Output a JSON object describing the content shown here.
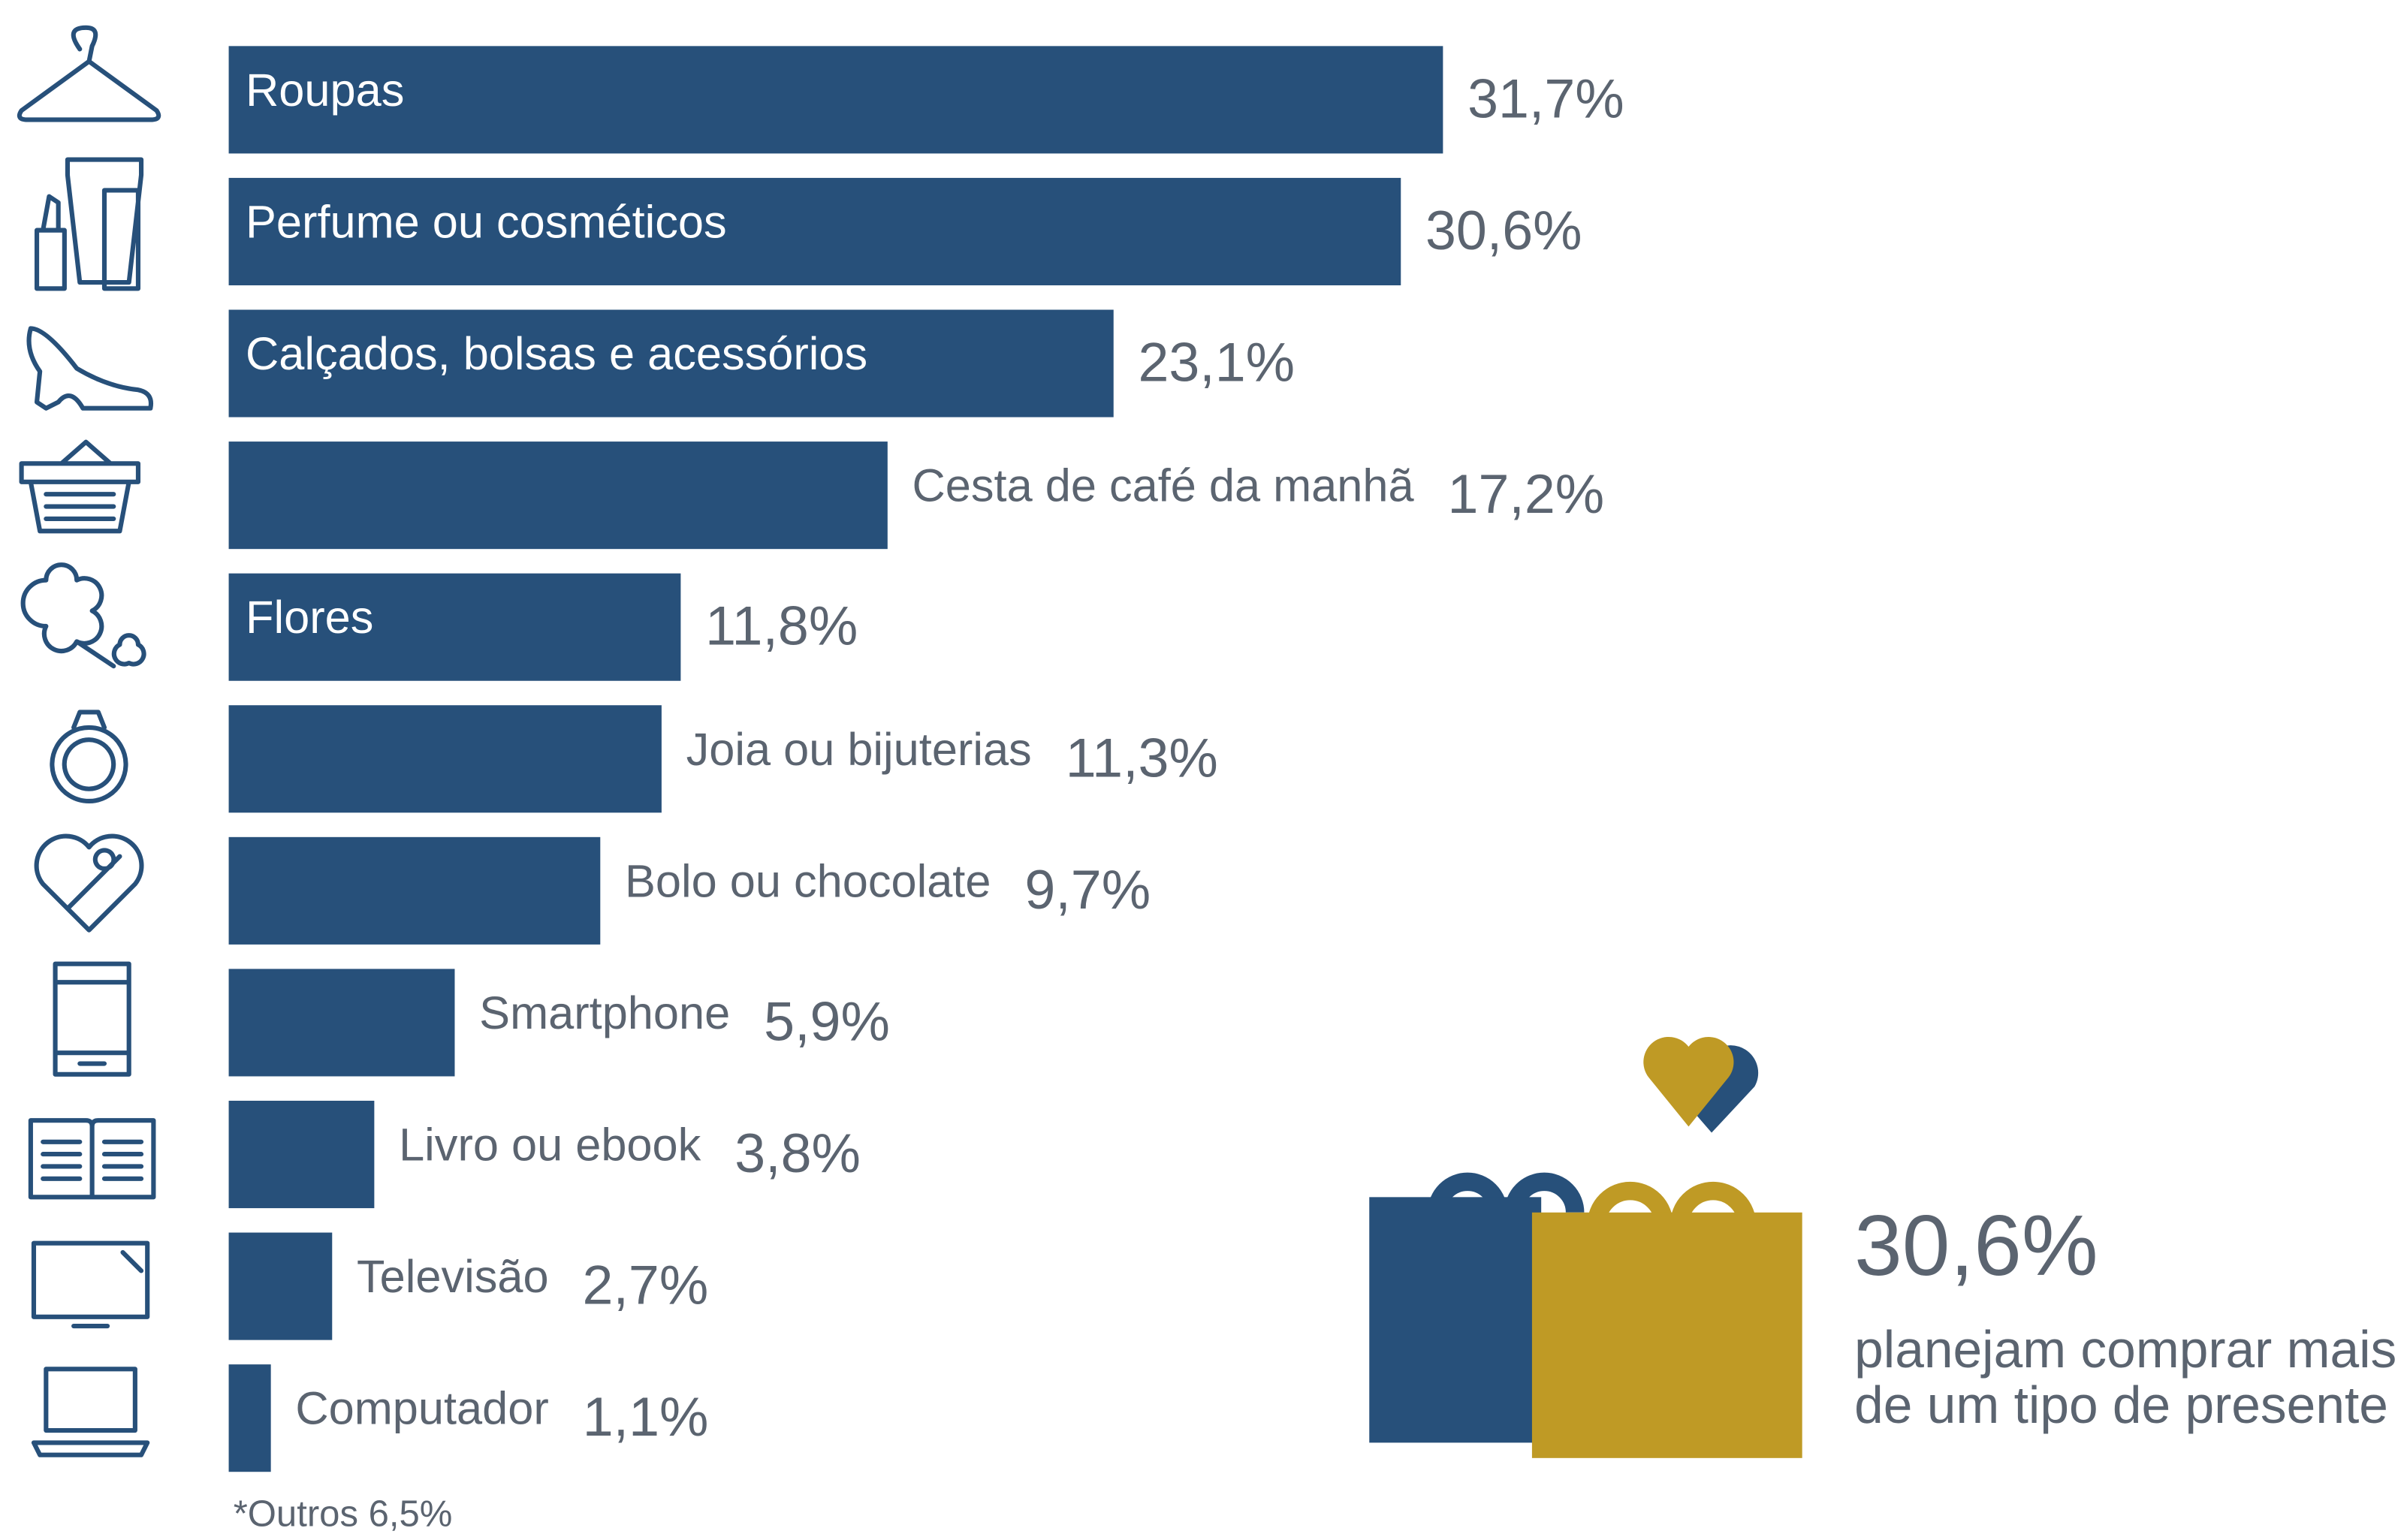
{
  "chart_data": {
    "type": "bar",
    "orientation": "horizontal",
    "categories": [
      "Roupas",
      "Perfume ou cosméticos",
      "Calçados, bolsas e acessórios",
      "Cesta de café da manhã",
      "Flores",
      "Joia ou bijuterias",
      "Bolo ou chocolate",
      "Smartphone",
      "Livro ou ebook",
      "Televisão",
      "Computador"
    ],
    "values": [
      31.7,
      30.6,
      23.1,
      17.2,
      11.8,
      11.3,
      9.7,
      5.9,
      3.8,
      2.7,
      1.1
    ],
    "value_labels": [
      "31,7%",
      "30,6%",
      "23,1%",
      "17,2%",
      "11,8%",
      "11,3%",
      "9,7%",
      "5,9%",
      "3,8%",
      "2,7%",
      "1,1%"
    ],
    "color": "#27507a",
    "footnote": "*Outros 6,5%",
    "callout": {
      "headline": "30,6%",
      "lines": [
        "planejam comprar mais",
        "de um tipo de presente"
      ]
    }
  }
}
